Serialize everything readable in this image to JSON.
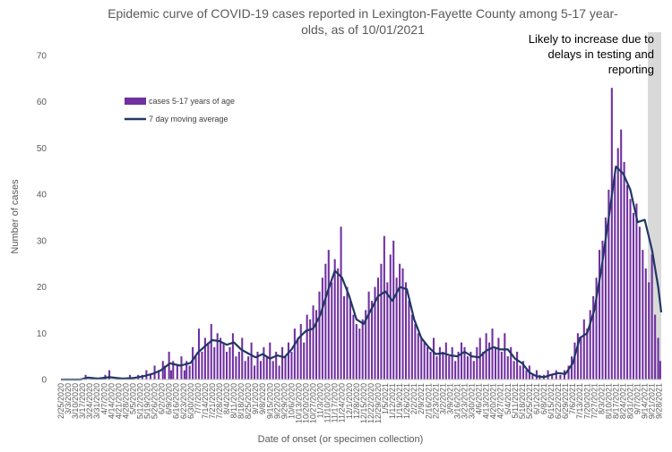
{
  "chart_data": {
    "type": "bar",
    "title_lines": [
      "Epidemic curve of COVID-19 cases reported in Lexington-Fayette County among 5-17 year-",
      "olds, as of 10/01/2021"
    ],
    "xlabel": "Date of onset (or specimen collection)",
    "ylabel": "Number of cases",
    "ylim": [
      0,
      70
    ],
    "yticks": [
      0,
      10,
      20,
      30,
      40,
      50,
      60,
      70
    ],
    "x_start": "2/25/2020",
    "x_end": "9/30/2021",
    "tick_labels": [
      "2/25/2020",
      "3/10/2020",
      "3/24/2020",
      "4/7/2020",
      "4/21/2020",
      "5/5/2020",
      "5/19/2020",
      "6/2/2020",
      "6/16/2020",
      "6/30/2020",
      "7/14/2020",
      "7/28/2020",
      "8/11/2020",
      "8/25/2020",
      "9/8/2020",
      "9/22/2020",
      "10/6/2020",
      "10/20/2020",
      "11/3/2020",
      "11/17/2020",
      "12/1/2020",
      "12/15/2020",
      "12/29/2020",
      "1/12/2021",
      "1/26/2021",
      "2/9/2021",
      "2/23/2021",
      "3/9/2021",
      "3/23/2021",
      "4/6/2021",
      "4/20/2021",
      "5/4/2021",
      "5/18/2021",
      "6/1/2021",
      "6/15/2021",
      "6/29/2021",
      "7/13/2021",
      "7/27/2021",
      "8/10/2021",
      "8/24/2021",
      "9/7/2021",
      "9/21/2021"
    ],
    "tick_labels_minor": [
      "3/3/2020",
      "3/17/2020",
      "3/31/2020",
      "4/14/2020",
      "4/28/2020",
      "5/12/2020",
      "5/26/2020",
      "6/9/2020",
      "6/23/2020",
      "7/7/2020",
      "7/21/2020",
      "8/4/2020",
      "8/18/2020",
      "9/1/2020",
      "9/15/2020",
      "9/29/2020",
      "10/13/2020",
      "10/27/2020",
      "11/10/2020",
      "11/24/2020",
      "12/8/2020",
      "12/22/2020",
      "1/5/2021",
      "1/19/2021",
      "2/2/2021",
      "2/16/2021",
      "3/2/2021",
      "3/16/2021",
      "3/30/2021",
      "4/13/2021",
      "4/27/2021",
      "5/11/2021",
      "5/25/2021",
      "6/8/2021",
      "6/22/2021",
      "7/6/2021",
      "7/20/2021",
      "8/3/2021",
      "8/17/2021",
      "8/31/2021",
      "9/14/2021",
      "9/28/2021"
    ],
    "bar_color": "#7030a0",
    "line_color": "#1f3864",
    "shade_color": "#d9d9d9",
    "series": [
      {
        "name": "cases 5-17 years of age",
        "kind": "bar",
        "points": [
          [
            "3/20/2020",
            1
          ],
          [
            "4/8/2020",
            1
          ],
          [
            "4/12/2020",
            2
          ],
          [
            "5/2/2020",
            1
          ],
          [
            "5/10/2020",
            1
          ],
          [
            "5/14/2020",
            1
          ],
          [
            "5/18/2020",
            2
          ],
          [
            "5/22/2020",
            1
          ],
          [
            "5/26/2020",
            3
          ],
          [
            "5/30/2020",
            2
          ],
          [
            "6/3/2020",
            4
          ],
          [
            "6/5/2020",
            3
          ],
          [
            "6/9/2020",
            6
          ],
          [
            "6/11/2020",
            2
          ],
          [
            "6/13/2020",
            4
          ],
          [
            "6/17/2020",
            3
          ],
          [
            "6/21/2020",
            5
          ],
          [
            "6/24/2020",
            2
          ],
          [
            "6/26/2020",
            4
          ],
          [
            "6/29/2020",
            3
          ],
          [
            "7/2/2020",
            7
          ],
          [
            "7/5/2020",
            5
          ],
          [
            "7/8/2020",
            11
          ],
          [
            "7/11/2020",
            6
          ],
          [
            "7/14/2020",
            9
          ],
          [
            "7/17/2020",
            8
          ],
          [
            "7/20/2020",
            12
          ],
          [
            "7/23/2020",
            7
          ],
          [
            "7/26/2020",
            10
          ],
          [
            "7/29/2020",
            9
          ],
          [
            "8/1/2020",
            8
          ],
          [
            "8/4/2020",
            6
          ],
          [
            "8/7/2020",
            7
          ],
          [
            "8/10/2020",
            10
          ],
          [
            "8/13/2020",
            5
          ],
          [
            "8/16/2020",
            6
          ],
          [
            "8/19/2020",
            9
          ],
          [
            "8/22/2020",
            4
          ],
          [
            "8/25/2020",
            5
          ],
          [
            "8/28/2020",
            8
          ],
          [
            "8/31/2020",
            3
          ],
          [
            "9/3/2020",
            6
          ],
          [
            "9/6/2020",
            4
          ],
          [
            "9/9/2020",
            7
          ],
          [
            "9/12/2020",
            5
          ],
          [
            "9/15/2020",
            8
          ],
          [
            "9/18/2020",
            4
          ],
          [
            "9/21/2020",
            6
          ],
          [
            "9/24/2020",
            3
          ],
          [
            "9/27/2020",
            7
          ],
          [
            "9/30/2020",
            5
          ],
          [
            "10/3/2020",
            8
          ],
          [
            "10/6/2020",
            6
          ],
          [
            "10/9/2020",
            11
          ],
          [
            "10/12/2020",
            9
          ],
          [
            "10/15/2020",
            12
          ],
          [
            "10/18/2020",
            8
          ],
          [
            "10/21/2020",
            14
          ],
          [
            "10/24/2020",
            13
          ],
          [
            "10/27/2020",
            16
          ],
          [
            "10/30/2020",
            15
          ],
          [
            "11/2/2020",
            19
          ],
          [
            "11/5/2020",
            22
          ],
          [
            "11/8/2020",
            25
          ],
          [
            "11/11/2020",
            28
          ],
          [
            "11/14/2020",
            21
          ],
          [
            "11/17/2020",
            26
          ],
          [
            "11/20/2020",
            24
          ],
          [
            "11/23/2020",
            33
          ],
          [
            "11/26/2020",
            18
          ],
          [
            "11/29/2020",
            20
          ],
          [
            "12/2/2020",
            17
          ],
          [
            "12/5/2020",
            14
          ],
          [
            "12/8/2020",
            12
          ],
          [
            "12/11/2020",
            11
          ],
          [
            "12/14/2020",
            13
          ],
          [
            "12/17/2020",
            15
          ],
          [
            "12/20/2020",
            19
          ],
          [
            "12/23/2020",
            17
          ],
          [
            "12/26/2020",
            20
          ],
          [
            "12/29/2020",
            22
          ],
          [
            "1/1/2021",
            25
          ],
          [
            "1/4/2021",
            31
          ],
          [
            "1/7/2021",
            21
          ],
          [
            "1/10/2021",
            27
          ],
          [
            "1/13/2021",
            30
          ],
          [
            "1/16/2021",
            22
          ],
          [
            "1/19/2021",
            25
          ],
          [
            "1/22/2021",
            24
          ],
          [
            "1/25/2021",
            21
          ],
          [
            "1/28/2021",
            17
          ],
          [
            "1/31/2021",
            14
          ],
          [
            "2/3/2021",
            12
          ],
          [
            "2/6/2021",
            10
          ],
          [
            "2/9/2021",
            9
          ],
          [
            "2/12/2021",
            8
          ],
          [
            "2/15/2021",
            7
          ],
          [
            "2/18/2021",
            6
          ],
          [
            "2/21/2021",
            9
          ],
          [
            "2/24/2021",
            5
          ],
          [
            "2/27/2021",
            7
          ],
          [
            "3/2/2021",
            6
          ],
          [
            "3/5/2021",
            8
          ],
          [
            "3/8/2021",
            5
          ],
          [
            "3/11/2021",
            7
          ],
          [
            "3/14/2021",
            4
          ],
          [
            "3/17/2021",
            6
          ],
          [
            "3/20/2021",
            8
          ],
          [
            "3/23/2021",
            7
          ],
          [
            "3/26/2021",
            5
          ],
          [
            "3/29/2021",
            6
          ],
          [
            "4/1/2021",
            4
          ],
          [
            "4/4/2021",
            7
          ],
          [
            "4/7/2021",
            9
          ],
          [
            "4/10/2021",
            6
          ],
          [
            "4/13/2021",
            10
          ],
          [
            "4/16/2021",
            8
          ],
          [
            "4/19/2021",
            11
          ],
          [
            "4/22/2021",
            7
          ],
          [
            "4/25/2021",
            9
          ],
          [
            "4/28/2021",
            6
          ],
          [
            "5/1/2021",
            10
          ],
          [
            "5/4/2021",
            5
          ],
          [
            "5/7/2021",
            7
          ],
          [
            "5/10/2021",
            4
          ],
          [
            "5/13/2021",
            6
          ],
          [
            "5/16/2021",
            3
          ],
          [
            "5/19/2021",
            4
          ],
          [
            "5/22/2021",
            2
          ],
          [
            "5/25/2021",
            3
          ],
          [
            "5/28/2021",
            1
          ],
          [
            "6/1/2021",
            2
          ],
          [
            "6/4/2021",
            1
          ],
          [
            "6/8/2021",
            1
          ],
          [
            "6/12/2021",
            2
          ],
          [
            "6/16/2021",
            1
          ],
          [
            "6/20/2021",
            2
          ],
          [
            "6/24/2021",
            1
          ],
          [
            "6/28/2021",
            2
          ],
          [
            "7/2/2021",
            3
          ],
          [
            "7/5/2021",
            5
          ],
          [
            "7/8/2021",
            8
          ],
          [
            "7/11/2021",
            10
          ],
          [
            "7/14/2021",
            9
          ],
          [
            "7/17/2021",
            13
          ],
          [
            "7/20/2021",
            11
          ],
          [
            "7/23/2021",
            15
          ],
          [
            "7/26/2021",
            18
          ],
          [
            "7/29/2021",
            22
          ],
          [
            "8/1/2021",
            28
          ],
          [
            "8/4/2021",
            30
          ],
          [
            "8/7/2021",
            35
          ],
          [
            "8/10/2021",
            41
          ],
          [
            "8/13/2021",
            63
          ],
          [
            "8/16/2021",
            44
          ],
          [
            "8/19/2021",
            50
          ],
          [
            "8/22/2021",
            54
          ],
          [
            "8/25/2021",
            47
          ],
          [
            "8/28/2021",
            42
          ],
          [
            "8/31/2021",
            39
          ],
          [
            "9/3/2021",
            36
          ],
          [
            "9/6/2021",
            38
          ],
          [
            "9/9/2021",
            33
          ],
          [
            "9/12/2021",
            28
          ],
          [
            "9/15/2021",
            24
          ],
          [
            "9/18/2021",
            21
          ],
          [
            "9/21/2021",
            27
          ],
          [
            "9/24/2021",
            14
          ],
          [
            "9/27/2021",
            9
          ],
          [
            "9/29/2021",
            4
          ]
        ]
      },
      {
        "name": "7 day moving average",
        "kind": "line",
        "points": [
          [
            "2/25/2020",
            0
          ],
          [
            "3/15/2020",
            0
          ],
          [
            "3/22/2020",
            0.4
          ],
          [
            "4/1/2020",
            0.2
          ],
          [
            "4/12/2020",
            0.5
          ],
          [
            "4/25/2020",
            0.2
          ],
          [
            "5/5/2020",
            0.3
          ],
          [
            "5/15/2020",
            0.7
          ],
          [
            "5/25/2020",
            1.3
          ],
          [
            "6/1/2020",
            2
          ],
          [
            "6/10/2020",
            3.5
          ],
          [
            "6/20/2020",
            3
          ],
          [
            "6/30/2020",
            3.6
          ],
          [
            "7/7/2020",
            5.8
          ],
          [
            "7/14/2020",
            7.2
          ],
          [
            "7/21/2020",
            8.5
          ],
          [
            "7/28/2020",
            8.3
          ],
          [
            "8/4/2020",
            7.5
          ],
          [
            "8/11/2020",
            8
          ],
          [
            "8/18/2020",
            6.5
          ],
          [
            "8/25/2020",
            5.6
          ],
          [
            "9/1/2020",
            4.8
          ],
          [
            "9/8/2020",
            5.5
          ],
          [
            "9/15/2020",
            4.5
          ],
          [
            "9/22/2020",
            5.2
          ],
          [
            "9/29/2020",
            4.8
          ],
          [
            "10/6/2020",
            6.5
          ],
          [
            "10/13/2020",
            9
          ],
          [
            "10/20/2020",
            10.5
          ],
          [
            "10/27/2020",
            11
          ],
          [
            "11/3/2020",
            14
          ],
          [
            "11/10/2020",
            19
          ],
          [
            "11/17/2020",
            23.5
          ],
          [
            "11/24/2020",
            22
          ],
          [
            "12/1/2020",
            18
          ],
          [
            "12/8/2020",
            13
          ],
          [
            "12/15/2020",
            12
          ],
          [
            "12/22/2020",
            15
          ],
          [
            "12/29/2020",
            18
          ],
          [
            "1/5/2021",
            19
          ],
          [
            "1/12/2021",
            17
          ],
          [
            "1/19/2021",
            20
          ],
          [
            "1/26/2021",
            19.5
          ],
          [
            "2/2/2021",
            13
          ],
          [
            "2/9/2021",
            9
          ],
          [
            "2/16/2021",
            7
          ],
          [
            "2/23/2021",
            5.5
          ],
          [
            "3/2/2021",
            5.7
          ],
          [
            "3/9/2021",
            5.2
          ],
          [
            "3/16/2021",
            5
          ],
          [
            "3/23/2021",
            6
          ],
          [
            "3/30/2021",
            5
          ],
          [
            "4/6/2021",
            4.8
          ],
          [
            "4/13/2021",
            6.2
          ],
          [
            "4/20/2021",
            7
          ],
          [
            "4/27/2021",
            6.5
          ],
          [
            "5/4/2021",
            6.5
          ],
          [
            "5/11/2021",
            4.5
          ],
          [
            "5/18/2021",
            3.5
          ],
          [
            "5/25/2021",
            1.5
          ],
          [
            "6/1/2021",
            0.7
          ],
          [
            "6/8/2021",
            0.5
          ],
          [
            "6/15/2021",
            1
          ],
          [
            "6/22/2021",
            1.4
          ],
          [
            "6/29/2021",
            1.2
          ],
          [
            "7/6/2021",
            3.5
          ],
          [
            "7/13/2021",
            9
          ],
          [
            "7/20/2021",
            10
          ],
          [
            "7/27/2021",
            15
          ],
          [
            "8/3/2021",
            24
          ],
          [
            "8/10/2021",
            35
          ],
          [
            "8/17/2021",
            46
          ],
          [
            "8/24/2021",
            44.5
          ],
          [
            "8/31/2021",
            41
          ],
          [
            "9/7/2021",
            34
          ],
          [
            "9/14/2021",
            34.5
          ],
          [
            "9/21/2021",
            28
          ],
          [
            "9/27/2021",
            20
          ],
          [
            "9/30/2021",
            14.5
          ]
        ]
      }
    ],
    "shaded_region": {
      "from": "9/17/2021",
      "to": "9/30/2021"
    },
    "annotation_lines": [
      "Likely to increase due to",
      "delays in testing and",
      "reporting"
    ],
    "legend_position": "upper-left",
    "grid": false
  }
}
